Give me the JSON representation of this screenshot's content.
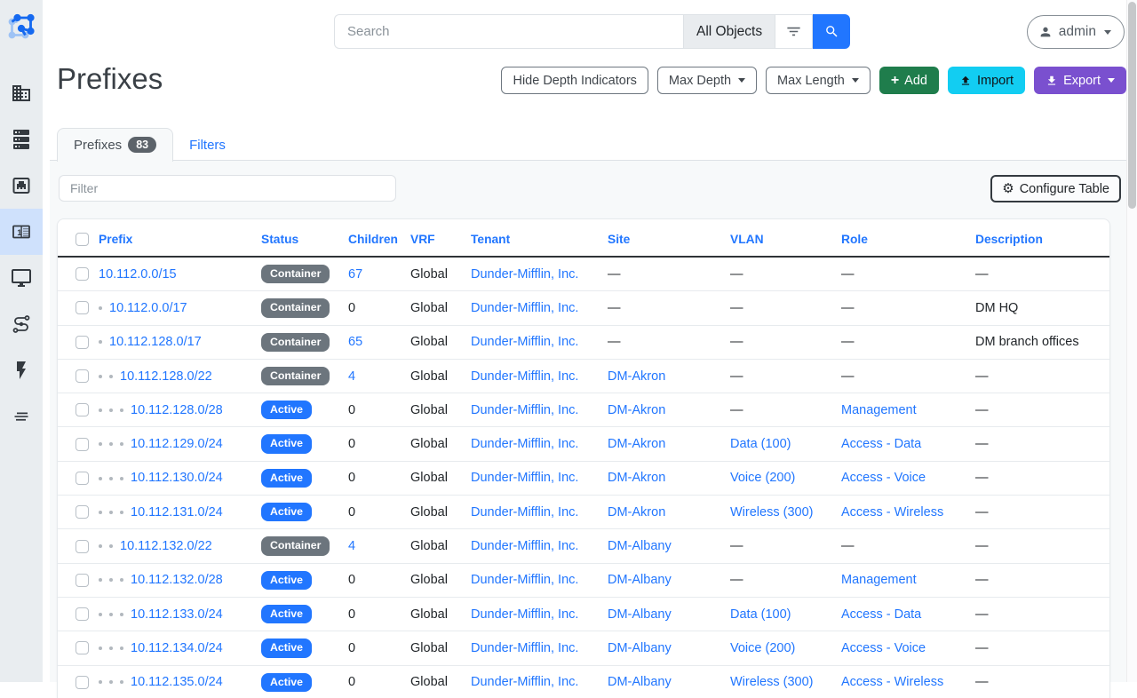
{
  "topbar": {
    "search_placeholder": "Search",
    "scope_label": "All Objects",
    "user": "admin"
  },
  "sidebar": {
    "items": [
      {
        "name": "organization",
        "icon": "building-icon",
        "active": false
      },
      {
        "name": "devices",
        "icon": "server-icon",
        "active": false
      },
      {
        "name": "connections",
        "icon": "ethernet-port-icon",
        "active": false
      },
      {
        "name": "ipam",
        "icon": "counter-icon",
        "active": true
      },
      {
        "name": "virtualization",
        "icon": "monitor-icon",
        "active": false
      },
      {
        "name": "circuits",
        "icon": "cable-icon",
        "active": false
      },
      {
        "name": "power",
        "icon": "lightning-icon",
        "active": false
      },
      {
        "name": "other",
        "icon": "lines-icon",
        "active": false
      }
    ]
  },
  "page": {
    "title": "Prefixes",
    "actions": {
      "hide_depth": "Hide Depth Indicators",
      "max_depth": "Max Depth",
      "max_length": "Max Length",
      "add": "Add",
      "import": "Import",
      "export": "Export"
    },
    "tabs": [
      {
        "label": "Prefixes",
        "count": "83",
        "active": true
      },
      {
        "label": "Filters",
        "active": false
      }
    ],
    "filter_placeholder": "Filter",
    "configure_table": "Configure Table"
  },
  "table": {
    "columns": [
      "Prefix",
      "Status",
      "Children",
      "VRF",
      "Tenant",
      "Site",
      "VLAN",
      "Role",
      "Description"
    ],
    "rows": [
      {
        "depth": 0,
        "prefix": "10.112.0.0/15",
        "status": "Container",
        "status_color": "gray",
        "children": "67",
        "children_is_link": true,
        "vrf": "Global",
        "tenant": "Dunder-Mifflin, Inc.",
        "site": "—",
        "vlan": "—",
        "role": "—",
        "description": "—"
      },
      {
        "depth": 1,
        "prefix": "10.112.0.0/17",
        "status": "Container",
        "status_color": "gray",
        "children": "0",
        "children_is_link": false,
        "vrf": "Global",
        "tenant": "Dunder-Mifflin, Inc.",
        "site": "—",
        "vlan": "—",
        "role": "—",
        "description": "DM HQ"
      },
      {
        "depth": 1,
        "prefix": "10.112.128.0/17",
        "status": "Container",
        "status_color": "gray",
        "children": "65",
        "children_is_link": true,
        "vrf": "Global",
        "tenant": "Dunder-Mifflin, Inc.",
        "site": "—",
        "vlan": "—",
        "role": "—",
        "description": "DM branch offices"
      },
      {
        "depth": 2,
        "prefix": "10.112.128.0/22",
        "status": "Container",
        "status_color": "gray",
        "children": "4",
        "children_is_link": true,
        "vrf": "Global",
        "tenant": "Dunder-Mifflin, Inc.",
        "site": "DM-Akron",
        "vlan": "—",
        "role": "—",
        "description": "—"
      },
      {
        "depth": 3,
        "prefix": "10.112.128.0/28",
        "status": "Active",
        "status_color": "blue",
        "children": "0",
        "children_is_link": false,
        "vrf": "Global",
        "tenant": "Dunder-Mifflin, Inc.",
        "site": "DM-Akron",
        "vlan": "—",
        "role": "Management",
        "description": "—"
      },
      {
        "depth": 3,
        "prefix": "10.112.129.0/24",
        "status": "Active",
        "status_color": "blue",
        "children": "0",
        "children_is_link": false,
        "vrf": "Global",
        "tenant": "Dunder-Mifflin, Inc.",
        "site": "DM-Akron",
        "vlan": "Data (100)",
        "role": "Access - Data",
        "description": "—"
      },
      {
        "depth": 3,
        "prefix": "10.112.130.0/24",
        "status": "Active",
        "status_color": "blue",
        "children": "0",
        "children_is_link": false,
        "vrf": "Global",
        "tenant": "Dunder-Mifflin, Inc.",
        "site": "DM-Akron",
        "vlan": "Voice (200)",
        "role": "Access - Voice",
        "description": "—"
      },
      {
        "depth": 3,
        "prefix": "10.112.131.0/24",
        "status": "Active",
        "status_color": "blue",
        "children": "0",
        "children_is_link": false,
        "vrf": "Global",
        "tenant": "Dunder-Mifflin, Inc.",
        "site": "DM-Akron",
        "vlan": "Wireless (300)",
        "role": "Access - Wireless",
        "description": "—"
      },
      {
        "depth": 2,
        "prefix": "10.112.132.0/22",
        "status": "Container",
        "status_color": "gray",
        "children": "4",
        "children_is_link": true,
        "vrf": "Global",
        "tenant": "Dunder-Mifflin, Inc.",
        "site": "DM-Albany",
        "vlan": "—",
        "role": "—",
        "description": "—"
      },
      {
        "depth": 3,
        "prefix": "10.112.132.0/28",
        "status": "Active",
        "status_color": "blue",
        "children": "0",
        "children_is_link": false,
        "vrf": "Global",
        "tenant": "Dunder-Mifflin, Inc.",
        "site": "DM-Albany",
        "vlan": "—",
        "role": "Management",
        "description": "—"
      },
      {
        "depth": 3,
        "prefix": "10.112.133.0/24",
        "status": "Active",
        "status_color": "blue",
        "children": "0",
        "children_is_link": false,
        "vrf": "Global",
        "tenant": "Dunder-Mifflin, Inc.",
        "site": "DM-Albany",
        "vlan": "Data (100)",
        "role": "Access - Data",
        "description": "—"
      },
      {
        "depth": 3,
        "prefix": "10.112.134.0/24",
        "status": "Active",
        "status_color": "blue",
        "children": "0",
        "children_is_link": false,
        "vrf": "Global",
        "tenant": "Dunder-Mifflin, Inc.",
        "site": "DM-Albany",
        "vlan": "Voice (200)",
        "role": "Access - Voice",
        "description": "—"
      },
      {
        "depth": 3,
        "prefix": "10.112.135.0/24",
        "status": "Active",
        "status_color": "blue",
        "children": "0",
        "children_is_link": false,
        "vrf": "Global",
        "tenant": "Dunder-Mifflin, Inc.",
        "site": "DM-Albany",
        "vlan": "Wireless (300)",
        "role": "Access - Wireless",
        "description": "—"
      }
    ]
  },
  "colors": {
    "accent_blue": "#2176ff",
    "badge_gray": "#6c757d",
    "badge_blue": "#2176ff",
    "add_green": "#1f7d4c",
    "import_cyan": "#12cdf2",
    "export_purple": "#7a50cf",
    "sidebar_active_bg": "#cfe1fc"
  }
}
